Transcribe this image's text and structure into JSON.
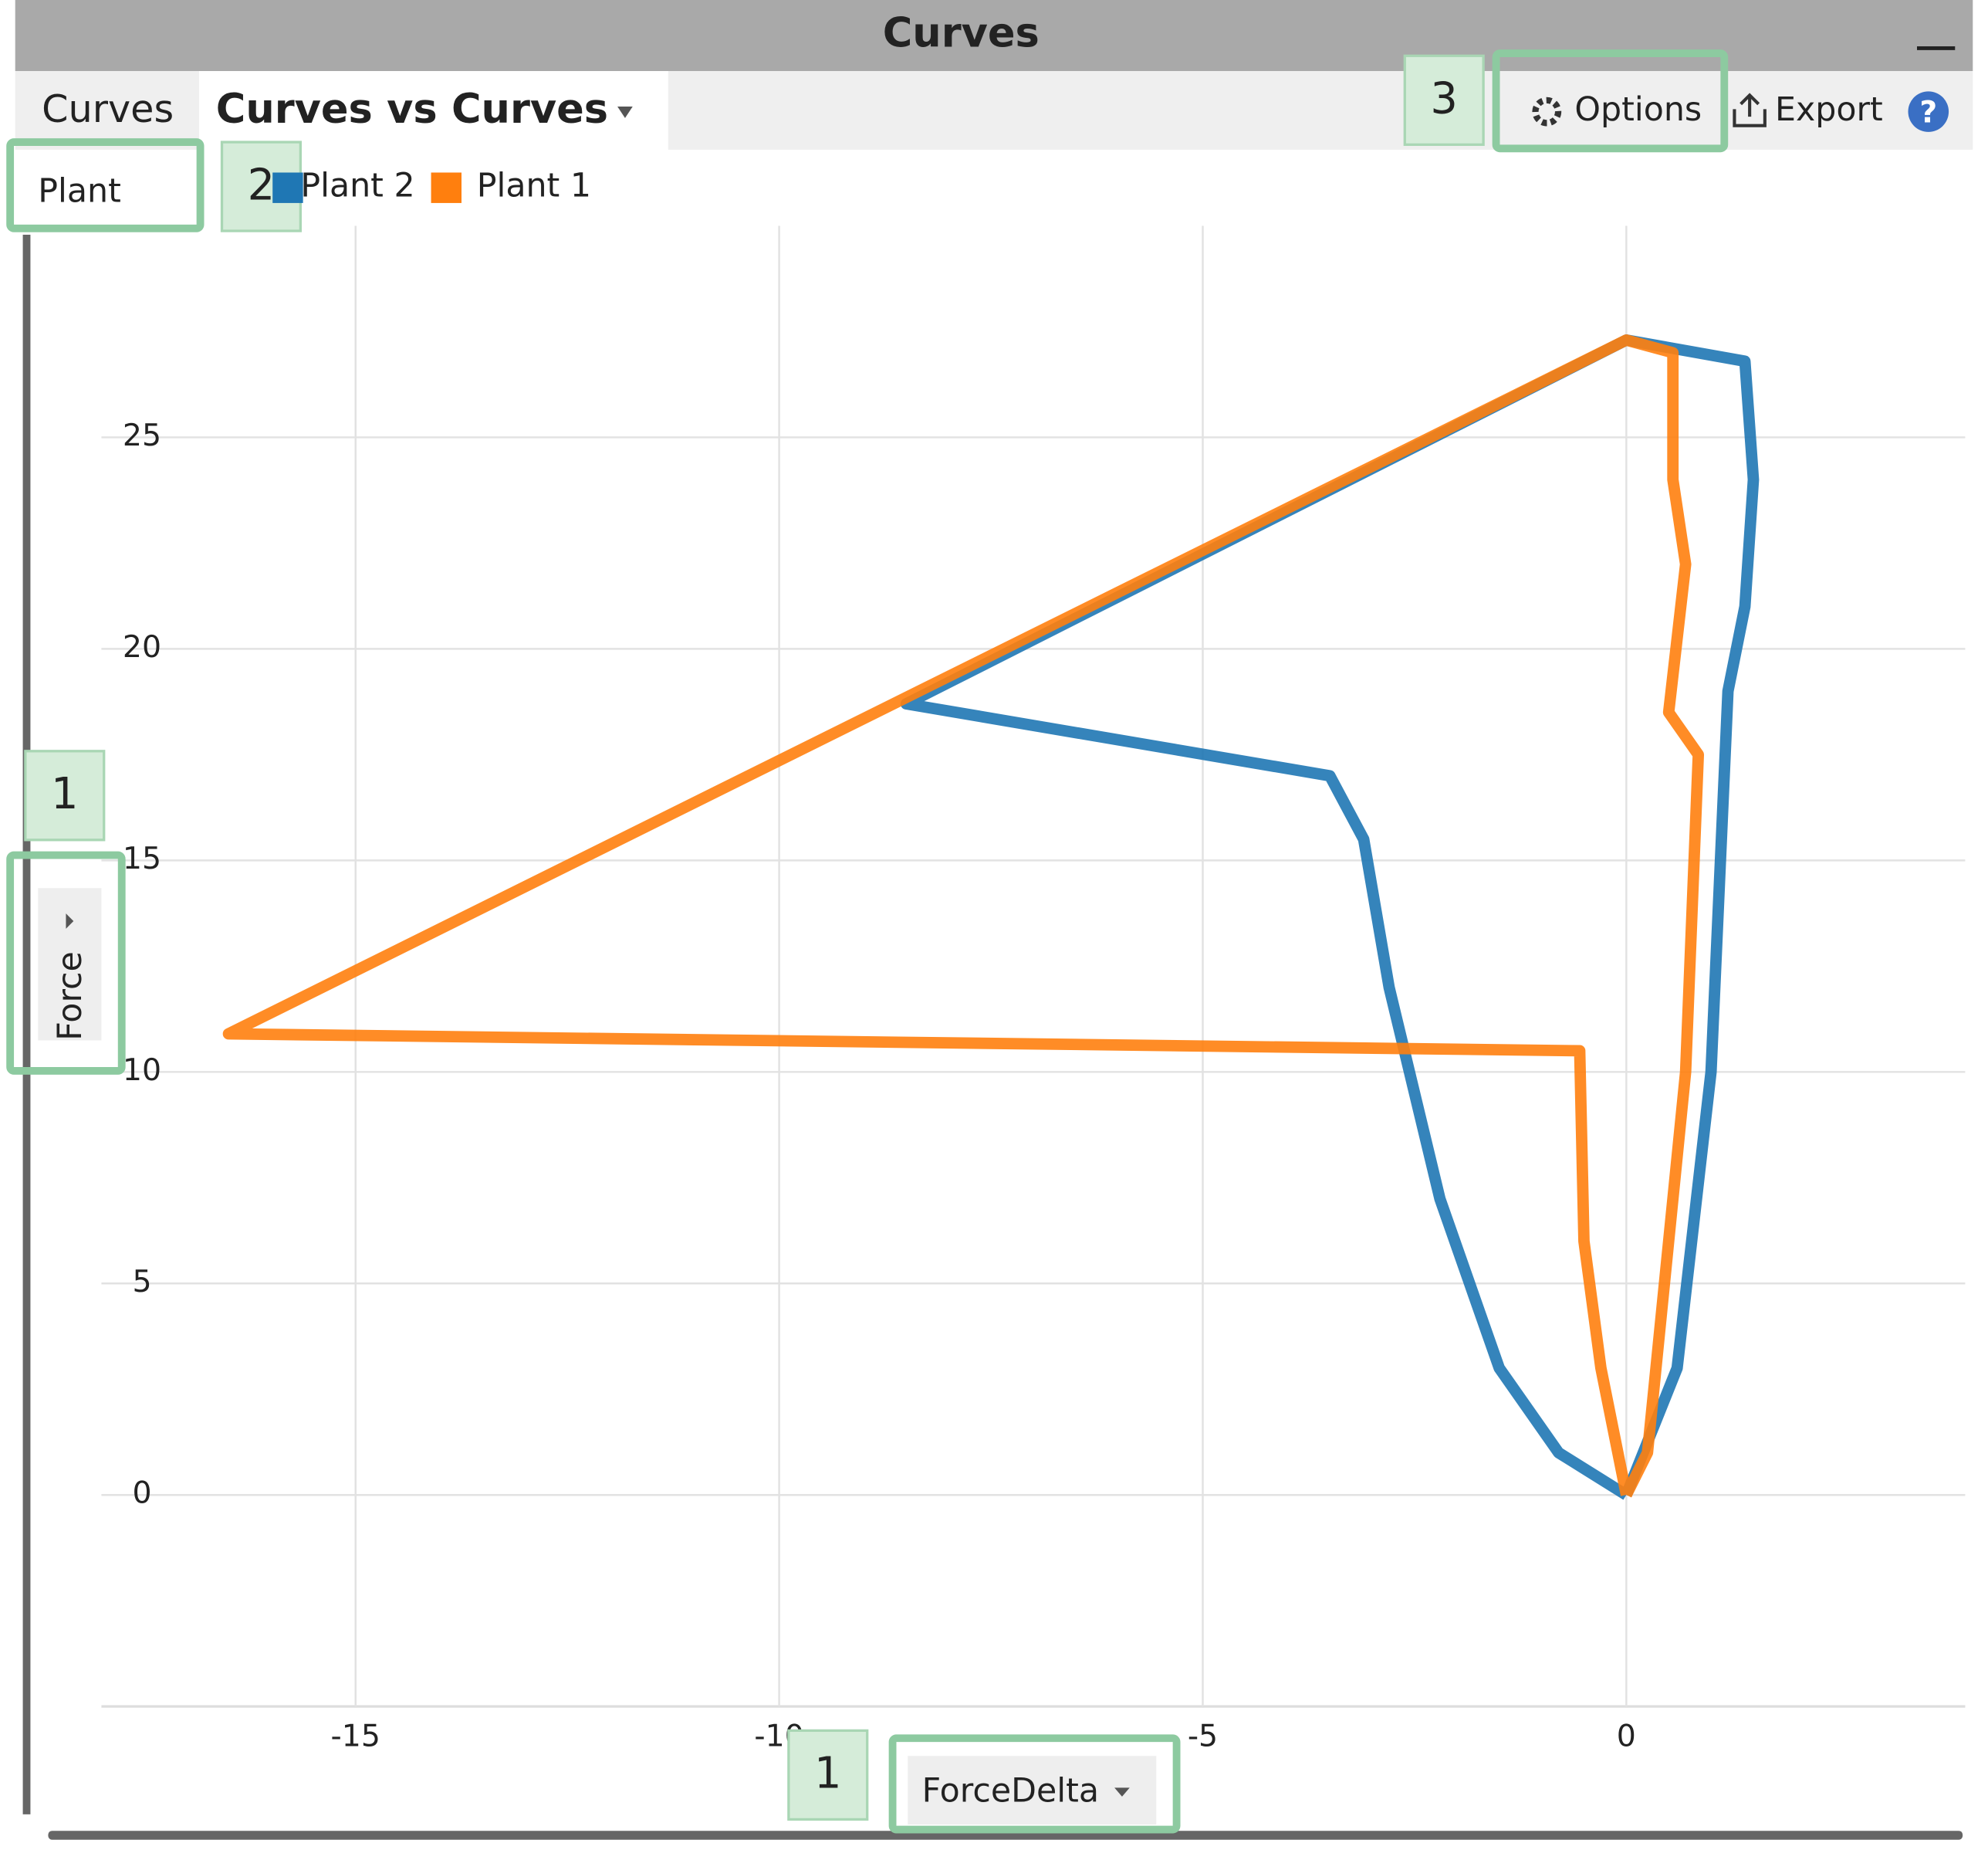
{
  "window_title": "Curves",
  "tabs": [
    "Curves",
    "Curves vs Curves"
  ],
  "toolbar": {
    "options": "Options",
    "export": "Export",
    "help": "?"
  },
  "callouts": [
    "1",
    "2",
    "3",
    "1"
  ],
  "legend_title": "Plant",
  "chart_data": {
    "type": "line",
    "x_label": "ForceDelta",
    "y_label": "Force",
    "xlim": [
      -18,
      4
    ],
    "ylim": [
      -5,
      30
    ],
    "xticks": [
      -15,
      -10,
      -5,
      0
    ],
    "yticks": [
      0,
      5,
      10,
      15,
      20,
      25
    ],
    "grid": true,
    "series": [
      {
        "name": "Plant 2",
        "color": "#1f77b4",
        "x": [
          0,
          -0.8,
          -1.5,
          -2.2,
          -2.8,
          -3.1,
          -3.5,
          -8.5,
          0,
          1.4,
          1.5,
          1.4,
          1.2,
          1.0,
          0.6,
          0.2,
          0
        ],
        "values": [
          0,
          1,
          3,
          7,
          12,
          15.5,
          17,
          18.7,
          27.3,
          26.8,
          24,
          21,
          19,
          10,
          3,
          1,
          0
        ]
      },
      {
        "name": "Plant 1",
        "color": "#ff7f0e",
        "x": [
          0,
          -0.3,
          -0.5,
          -0.55,
          -16.5,
          0,
          0.55,
          0.55,
          0.7,
          0.5,
          0.85,
          0.7,
          0.45,
          0.25,
          0
        ],
        "values": [
          0,
          3,
          6,
          10.5,
          10.9,
          27.3,
          27,
          24,
          22,
          18.5,
          17.5,
          10,
          5,
          1,
          0
        ]
      }
    ]
  }
}
